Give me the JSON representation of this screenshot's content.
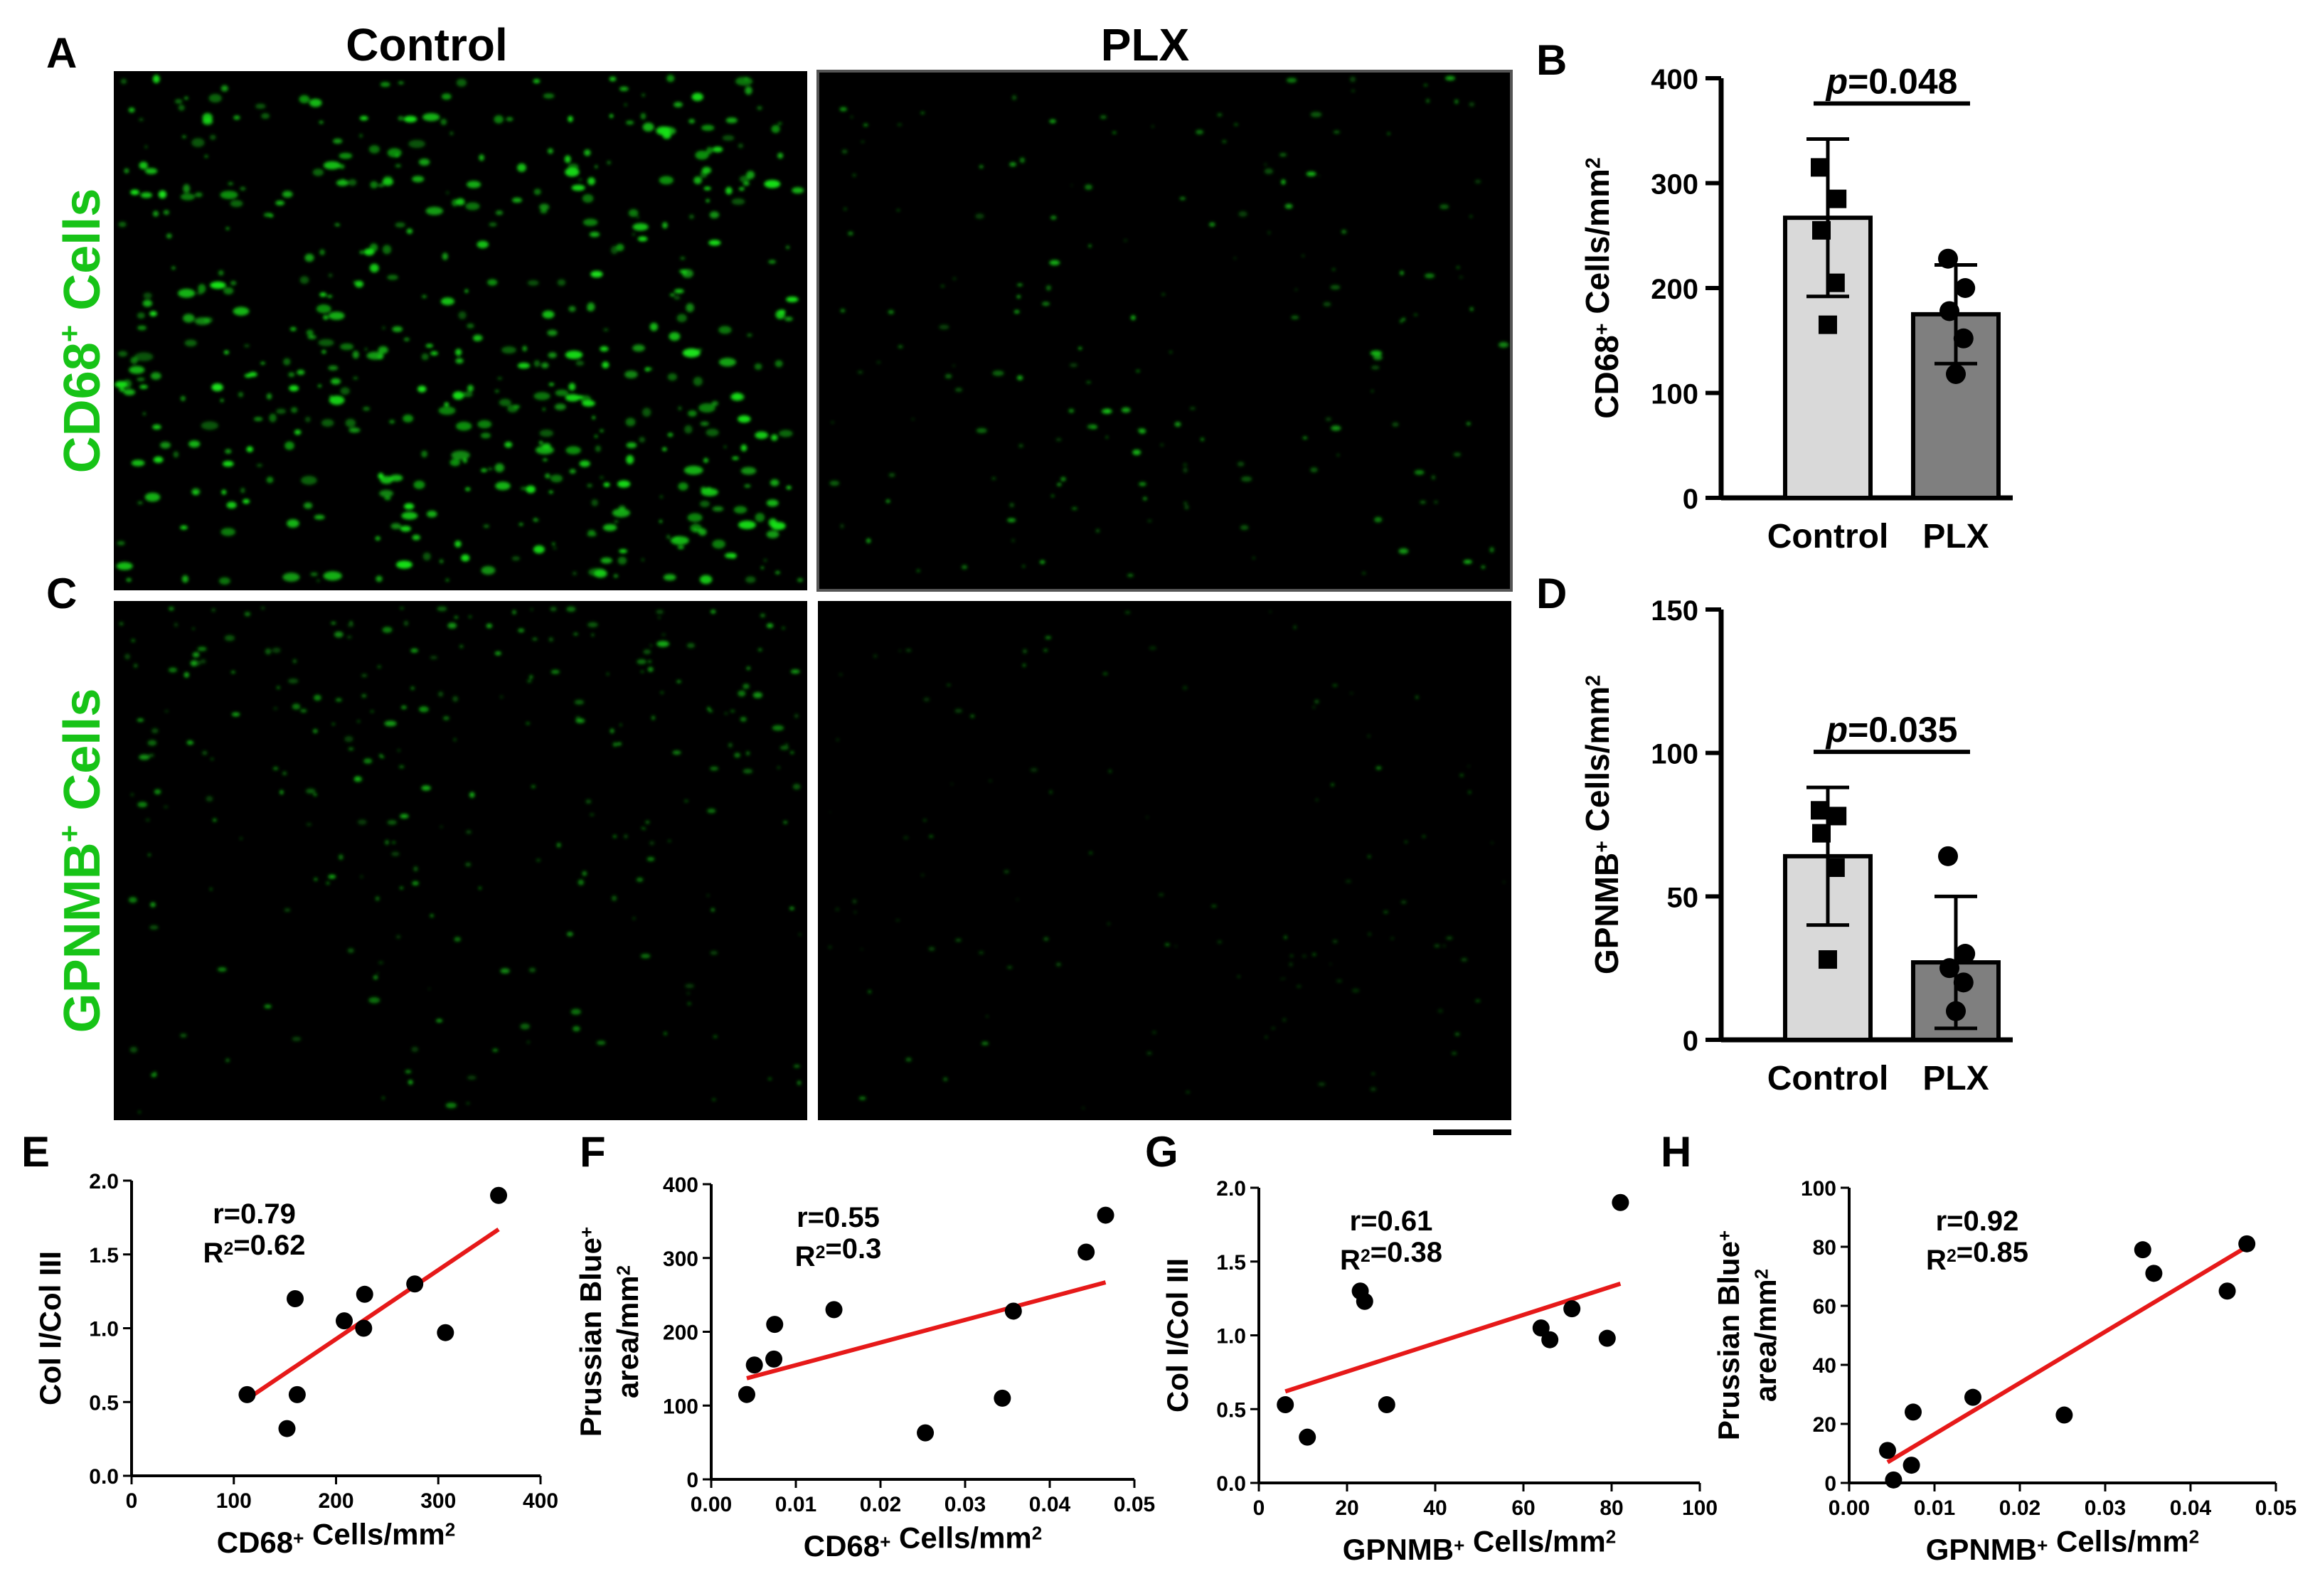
{
  "panel_letters": {
    "A": "A",
    "B": "B",
    "C": "C",
    "D": "D",
    "E": "E",
    "F": "F",
    "G": "G",
    "H": "H"
  },
  "columns": {
    "control": "Control",
    "plx": "PLX"
  },
  "rows": {
    "cd68": "CD68",
    "gpnmb": "GPNMB",
    "sup": "+",
    "cells": " Cells"
  },
  "colors": {
    "stain": "#19e619",
    "bar_control": "#d9d9d9",
    "bar_plx": "#7f7f7f",
    "fit_line": "#e61919",
    "point": "#000000"
  },
  "chart_data": [
    {
      "id": "B",
      "type": "bar",
      "categories": [
        "Control",
        "PLX"
      ],
      "values": [
        267,
        175
      ],
      "error": [
        75,
        47
      ],
      "points": [
        [
          315,
          285,
          255,
          205,
          165
        ],
        [
          228,
          200,
          178,
          152,
          118
        ]
      ],
      "markers": [
        "square",
        "circle"
      ],
      "ylim": [
        0,
        400
      ],
      "yticks": [
        0,
        100,
        200,
        300,
        400
      ],
      "ylabel": "CD68",
      "ylabel_sup": "+",
      "ylabel_rest": " Cells/mm",
      "ylabel_sup2": "2",
      "pvalue_prefix": "p",
      "pvalue_rest": "=0.048"
    },
    {
      "id": "D",
      "type": "bar",
      "categories": [
        "Control",
        "PLX"
      ],
      "values": [
        64,
        27
      ],
      "error": [
        24,
        23
      ],
      "points": [
        [
          80,
          78,
          72,
          60,
          28
        ],
        [
          64,
          30,
          25,
          20,
          10
        ]
      ],
      "markers": [
        "square",
        "circle"
      ],
      "ylim": [
        0,
        150
      ],
      "yticks": [
        0,
        50,
        100,
        150
      ],
      "ylabel": "GPNMB",
      "ylabel_sup": "+",
      "ylabel_rest": " Cells/mm",
      "ylabel_sup2": "2",
      "pvalue_prefix": "p",
      "pvalue_rest": "=0.035"
    },
    {
      "id": "E",
      "type": "scatter",
      "x": [
        113,
        152,
        160,
        162,
        208,
        227,
        228,
        277,
        307,
        359
      ],
      "y": [
        0.55,
        0.32,
        1.2,
        0.55,
        1.05,
        1.0,
        1.23,
        1.3,
        0.97,
        1.9
      ],
      "fit": [
        [
          113,
          0.52
        ],
        [
          359,
          1.67
        ]
      ],
      "xlim": [
        0,
        400
      ],
      "xticks": [
        "0",
        "100",
        "200",
        "300",
        "400"
      ],
      "ylim": [
        0,
        2.0
      ],
      "yticks": [
        "0.0",
        "0.5",
        "1.0",
        "1.5",
        "2.0"
      ],
      "xlabel": "CD68",
      "xlabel_sup": "+",
      "xlabel_rest": " Cells/mm",
      "xlabel_sup2": "2",
      "ylabel": "Col I/Col III",
      "r": "r=0.79",
      "r2_pre": "R",
      "r2_sup": "2",
      "r2_post": "=0.62"
    },
    {
      "id": "F",
      "type": "scatter",
      "x": [
        0.0042,
        0.0051,
        0.0074,
        0.0075,
        0.0145,
        0.0253,
        0.0344,
        0.0357,
        0.0443,
        0.0466
      ],
      "y": [
        115,
        155,
        163,
        210,
        230,
        63,
        110,
        228,
        308,
        358
      ],
      "fit": [
        [
          0.0042,
          137
        ],
        [
          0.0466,
          267
        ]
      ],
      "xlim": [
        0,
        0.05
      ],
      "xticks": [
        "0.00",
        "0.01",
        "0.02",
        "0.03",
        "0.04",
        "0.05"
      ],
      "ylim": [
        0,
        400
      ],
      "yticks": [
        "0",
        "100",
        "200",
        "300",
        "400"
      ],
      "xlabel": "CD68",
      "xlabel_sup": "+",
      "xlabel_rest": " Cells/mm",
      "xlabel_sup2": "2",
      "ylabel_line1": "Prussian Blue",
      "ylabel_line1_sup": "+",
      "ylabel_line2": "area/mm",
      "ylabel_line2_sup": "2",
      "r": "r=0.55",
      "r2_pre": "R",
      "r2_sup": "2",
      "r2_post": "=0.3"
    },
    {
      "id": "G",
      "type": "scatter",
      "x": [
        6,
        11,
        23,
        24,
        29,
        64,
        66,
        71,
        79,
        82
      ],
      "y": [
        0.53,
        0.31,
        1.3,
        1.23,
        0.53,
        1.05,
        0.97,
        1.18,
        0.98,
        1.9
      ],
      "fit": [
        [
          6,
          0.62
        ],
        [
          82,
          1.35
        ]
      ],
      "xlim": [
        0,
        100
      ],
      "xticks": [
        "0",
        "20",
        "40",
        "60",
        "80",
        "100"
      ],
      "ylim": [
        0,
        2.0
      ],
      "yticks": [
        "0.0",
        "0.5",
        "1.0",
        "1.5",
        "2.0"
      ],
      "xlabel": "GPNMB",
      "xlabel_sup": "+",
      "xlabel_rest": " Cells/mm",
      "xlabel_sup2": "2",
      "ylabel": "Col I/Col III",
      "r": "r=0.61",
      "r2_pre": "R",
      "r2_sup": "2",
      "r2_post": "=0.38"
    },
    {
      "id": "H",
      "type": "scatter",
      "x": [
        0.0045,
        0.0052,
        0.0073,
        0.0075,
        0.0145,
        0.0252,
        0.0344,
        0.0357,
        0.0443,
        0.0466
      ],
      "y": [
        11,
        1,
        6,
        24,
        29,
        23,
        79,
        71,
        65,
        81
      ],
      "fit": [
        [
          0.0045,
          7
        ],
        [
          0.0466,
          80
        ]
      ],
      "xlim": [
        0,
        0.05
      ],
      "xticks": [
        "0.00",
        "0.01",
        "0.02",
        "0.03",
        "0.04",
        "0.05"
      ],
      "ylim": [
        0,
        100
      ],
      "yticks": [
        "0",
        "20",
        "40",
        "60",
        "80",
        "100"
      ],
      "xlabel": "GPNMB",
      "xlabel_sup": "+",
      "xlabel_rest": " Cells/mm",
      "xlabel_sup2": "2",
      "ylabel_line1": "Prussian Blue",
      "ylabel_line1_sup": "+",
      "ylabel_line2": "area/mm",
      "ylabel_line2_sup": "2",
      "r": "r=0.92",
      "r2_pre": "R",
      "r2_sup": "2",
      "r2_post": "=0.85"
    }
  ]
}
